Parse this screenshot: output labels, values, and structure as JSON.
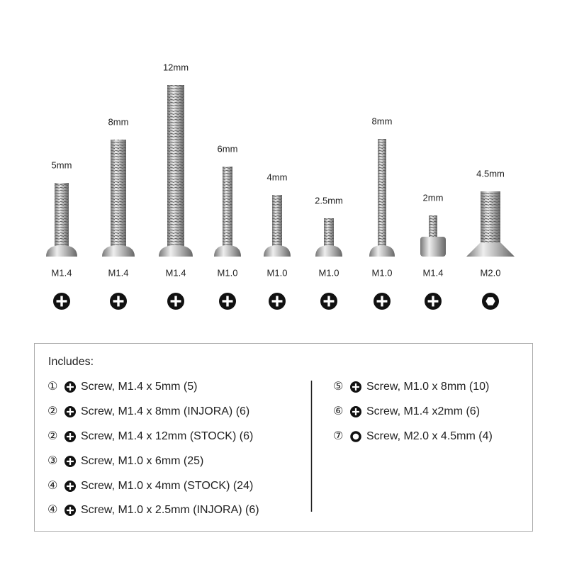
{
  "screws": [
    {
      "length": "5mm",
      "thread": "M1.4",
      "drive": "phillips"
    },
    {
      "length": "8mm",
      "thread": "M1.4",
      "drive": "phillips"
    },
    {
      "length": "12mm",
      "thread": "M1.4",
      "drive": "phillips"
    },
    {
      "length": "6mm",
      "thread": "M1.0",
      "drive": "phillips"
    },
    {
      "length": "4mm",
      "thread": "M1.0",
      "drive": "phillips"
    },
    {
      "length": "2.5mm",
      "thread": "M1.0",
      "drive": "phillips"
    },
    {
      "length": "8mm",
      "thread": "M1.0",
      "drive": "phillips"
    },
    {
      "length": "2mm",
      "thread": "M1.4",
      "drive": "phillips"
    },
    {
      "length": "4.5mm",
      "thread": "M2.0",
      "drive": "hex"
    }
  ],
  "includes": {
    "title": "Includes:",
    "left": [
      {
        "marker": "①",
        "text": "Screw, M1.4 x 5mm (5)",
        "drive": "phillips"
      },
      {
        "marker": "②",
        "text": "Screw, M1.4 x 8mm (INJORA) (6)",
        "drive": "phillips"
      },
      {
        "marker": "②",
        "text": "Screw, M1.4 x 12mm (STOCK) (6)",
        "drive": "phillips"
      },
      {
        "marker": "③",
        "text": "Screw, M1.0 x 6mm (25)",
        "drive": "phillips"
      },
      {
        "marker": "④",
        "text": "Screw, M1.0 x 4mm (STOCK) (24)",
        "drive": "phillips"
      },
      {
        "marker": "④",
        "text": "Screw, M1.0 x 2.5mm (INJORA) (6)",
        "drive": "phillips"
      }
    ],
    "right": [
      {
        "marker": "⑤",
        "text": "Screw, M1.0 x 8mm (10)",
        "drive": "phillips"
      },
      {
        "marker": "⑥",
        "text": "Screw, M1.4 x2mm (6)",
        "drive": "phillips"
      },
      {
        "marker": "⑦",
        "text": "Screw, M2.0 x 4.5mm (4)",
        "drive": "hex"
      }
    ]
  }
}
